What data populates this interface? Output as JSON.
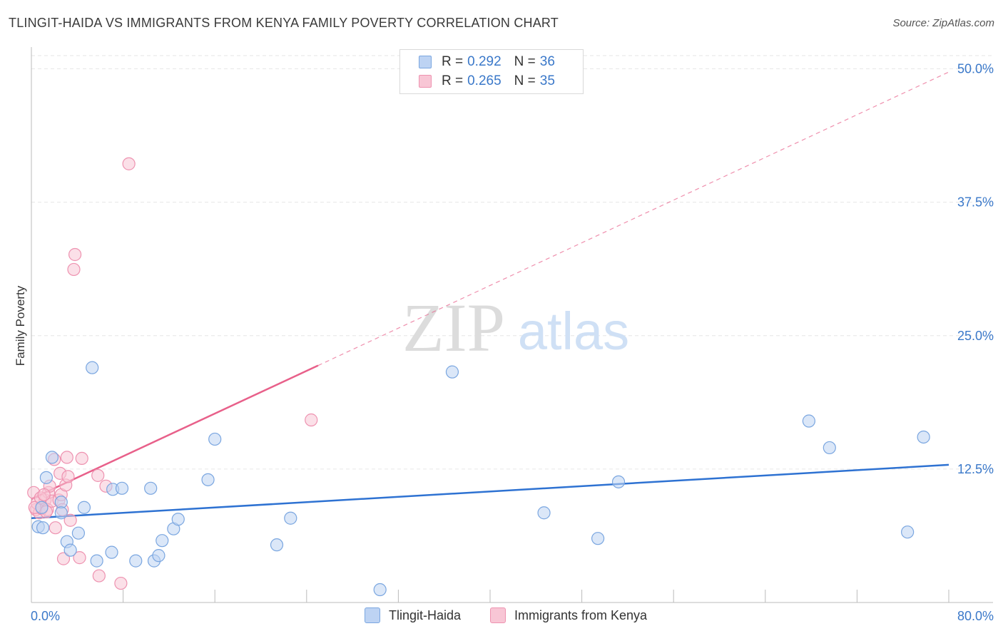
{
  "title": "TLINGIT-HAIDA VS IMMIGRANTS FROM KENYA FAMILY POVERTY CORRELATION CHART",
  "source": "Source: ZipAtlas.com",
  "watermark": {
    "zip": "ZIP",
    "atlas": "atlas"
  },
  "legend": [
    {
      "r_label": "R = ",
      "r_value": "0.292",
      "n_label": "N = ",
      "n_value": "36"
    },
    {
      "r_label": "R = ",
      "r_value": "0.265",
      "n_label": "N = ",
      "n_value": "35"
    }
  ],
  "colors": {
    "blue_fill": "#bdd3f3",
    "blue_stroke": "#7aa6e0",
    "blue_line": "#2e72d2",
    "pink_fill": "#f8c6d5",
    "pink_stroke": "#ee92b0",
    "pink_line": "#e8608a",
    "value_text": "#3a78c9",
    "grid": "#e6e6e6",
    "axis": "#bbbbbb"
  },
  "chart_data": {
    "type": "scatter",
    "title": "TLINGIT-HAIDA VS IMMIGRANTS FROM KENYA FAMILY POVERTY CORRELATION CHART",
    "xlabel": "",
    "ylabel": "Family Poverty",
    "xlim": [
      0,
      80
    ],
    "ylim": [
      0,
      50
    ],
    "x_ticks": [
      "0.0%",
      "80.0%"
    ],
    "y_ticks": [
      {
        "value": 12.5,
        "label": "12.5%"
      },
      {
        "value": 25.0,
        "label": "25.0%"
      },
      {
        "value": 37.5,
        "label": "37.5%"
      },
      {
        "value": 50.0,
        "label": "50.0%"
      }
    ],
    "grid": true,
    "series": [
      {
        "name": "Tlingit-Haida",
        "color": "blue",
        "points": [
          [
            0.6,
            7.1
          ],
          [
            1.0,
            7.0
          ],
          [
            1.3,
            11.7
          ],
          [
            1.8,
            13.6
          ],
          [
            2.6,
            9.4
          ],
          [
            2.6,
            8.4
          ],
          [
            3.1,
            5.7
          ],
          [
            3.4,
            4.9
          ],
          [
            4.1,
            6.5
          ],
          [
            4.6,
            8.9
          ],
          [
            5.3,
            22.0
          ],
          [
            5.7,
            3.9
          ],
          [
            7.0,
            4.7
          ],
          [
            7.1,
            10.6
          ],
          [
            7.9,
            10.7
          ],
          [
            9.1,
            3.9
          ],
          [
            10.4,
            10.7
          ],
          [
            10.7,
            3.9
          ],
          [
            11.1,
            4.4
          ],
          [
            11.4,
            5.8
          ],
          [
            12.4,
            6.9
          ],
          [
            12.8,
            7.8
          ],
          [
            15.4,
            11.5
          ],
          [
            16.0,
            15.3
          ],
          [
            21.4,
            5.4
          ],
          [
            22.6,
            7.9
          ],
          [
            30.4,
            1.2
          ],
          [
            36.7,
            21.6
          ],
          [
            44.7,
            8.4
          ],
          [
            49.4,
            6.0
          ],
          [
            51.2,
            11.3
          ],
          [
            67.8,
            17.0
          ],
          [
            69.6,
            14.5
          ],
          [
            76.4,
            6.6
          ],
          [
            77.8,
            15.5
          ],
          [
            0.9,
            8.9
          ]
        ],
        "trend": {
          "x": [
            0,
            80
          ],
          "y": [
            7.9,
            12.9
          ]
        }
      },
      {
        "name": "Immigrants from Kenya",
        "color": "pink",
        "points": [
          [
            0.2,
            10.3
          ],
          [
            0.4,
            8.7
          ],
          [
            0.5,
            9.3
          ],
          [
            0.7,
            8.4
          ],
          [
            0.9,
            8.8
          ],
          [
            1.2,
            9.6
          ],
          [
            1.4,
            8.7
          ],
          [
            1.5,
            10.3
          ],
          [
            1.6,
            10.9
          ],
          [
            1.8,
            9.5
          ],
          [
            2.0,
            13.4
          ],
          [
            2.1,
            7.0
          ],
          [
            2.4,
            9.6
          ],
          [
            2.5,
            12.1
          ],
          [
            2.6,
            10.1
          ],
          [
            2.7,
            8.7
          ],
          [
            2.8,
            4.1
          ],
          [
            3.0,
            11.0
          ],
          [
            3.1,
            13.6
          ],
          [
            3.2,
            11.8
          ],
          [
            3.4,
            7.7
          ],
          [
            3.7,
            31.2
          ],
          [
            3.8,
            32.6
          ],
          [
            4.2,
            4.2
          ],
          [
            4.4,
            13.5
          ],
          [
            5.8,
            11.9
          ],
          [
            5.9,
            2.5
          ],
          [
            6.5,
            10.9
          ],
          [
            7.8,
            1.8
          ],
          [
            8.5,
            41.1
          ],
          [
            24.4,
            17.1
          ],
          [
            0.3,
            8.9
          ],
          [
            0.8,
            9.8
          ],
          [
            1.3,
            8.5
          ],
          [
            1.1,
            10.1
          ]
        ],
        "trend_solid": {
          "x": [
            0,
            25
          ],
          "y": [
            9.7,
            22.2
          ]
        },
        "trend_dashed": {
          "x": [
            25,
            80
          ],
          "y": [
            22.2,
            49.7
          ]
        }
      }
    ]
  }
}
